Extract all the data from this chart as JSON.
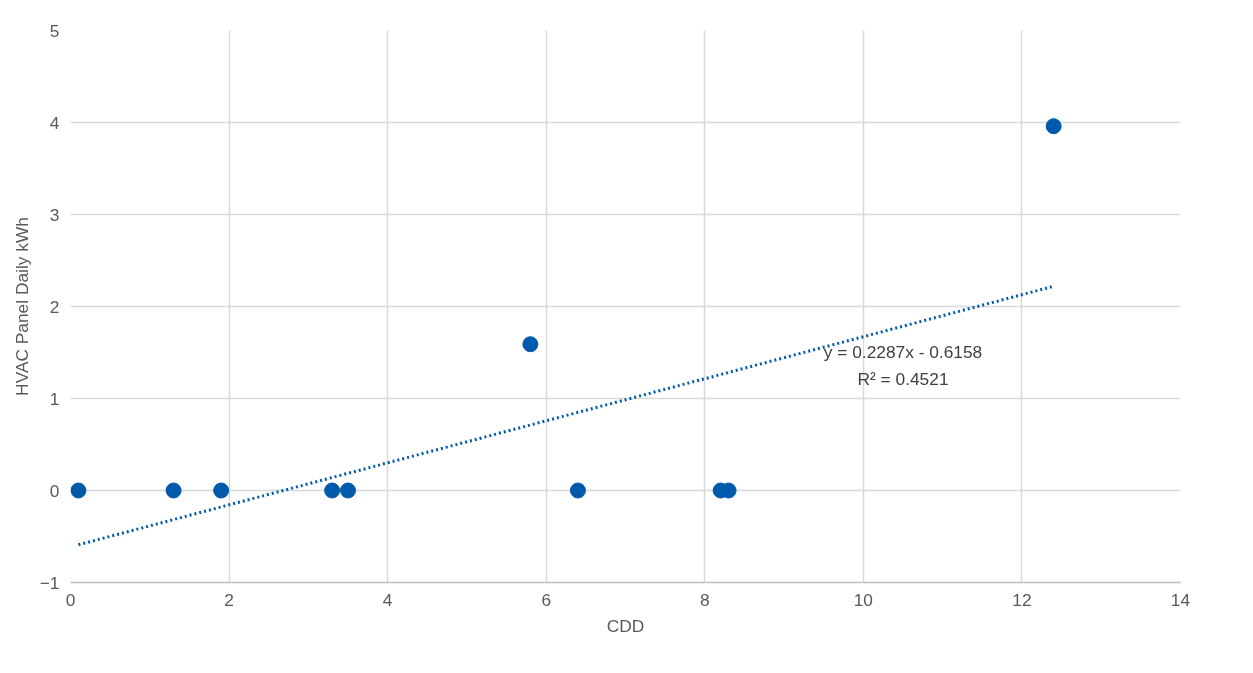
{
  "chart_data": {
    "type": "scatter",
    "xlabel": "CDD",
    "ylabel": "HVAC Panel Daily kWh",
    "x": [
      0.1,
      1.3,
      1.9,
      3.3,
      3.5,
      5.8,
      6.4,
      8.2,
      8.3,
      12.4
    ],
    "series": [
      {
        "color": "#005aab",
        "marker": "circle",
        "values": [
          0,
          0,
          0,
          0,
          0,
          1.59,
          0,
          0,
          0,
          3.96
        ]
      },
      {
        "type": "line",
        "color": "#005aab",
        "line_style": "dotted",
        "x": [
          0.1,
          12.4
        ],
        "values": [
          -0.59,
          2.22
        ]
      }
    ],
    "annotations": [
      "y = 0.2287x - 0.6158",
      "R² = 0.4521"
    ],
    "xlim": [
      0,
      14
    ],
    "ylim": [
      -1,
      5
    ],
    "xticks": [
      0,
      2,
      4,
      6,
      8,
      10,
      12,
      14
    ],
    "yticks": [
      -1,
      0,
      1,
      2,
      3,
      4,
      5
    ],
    "grid": true
  }
}
